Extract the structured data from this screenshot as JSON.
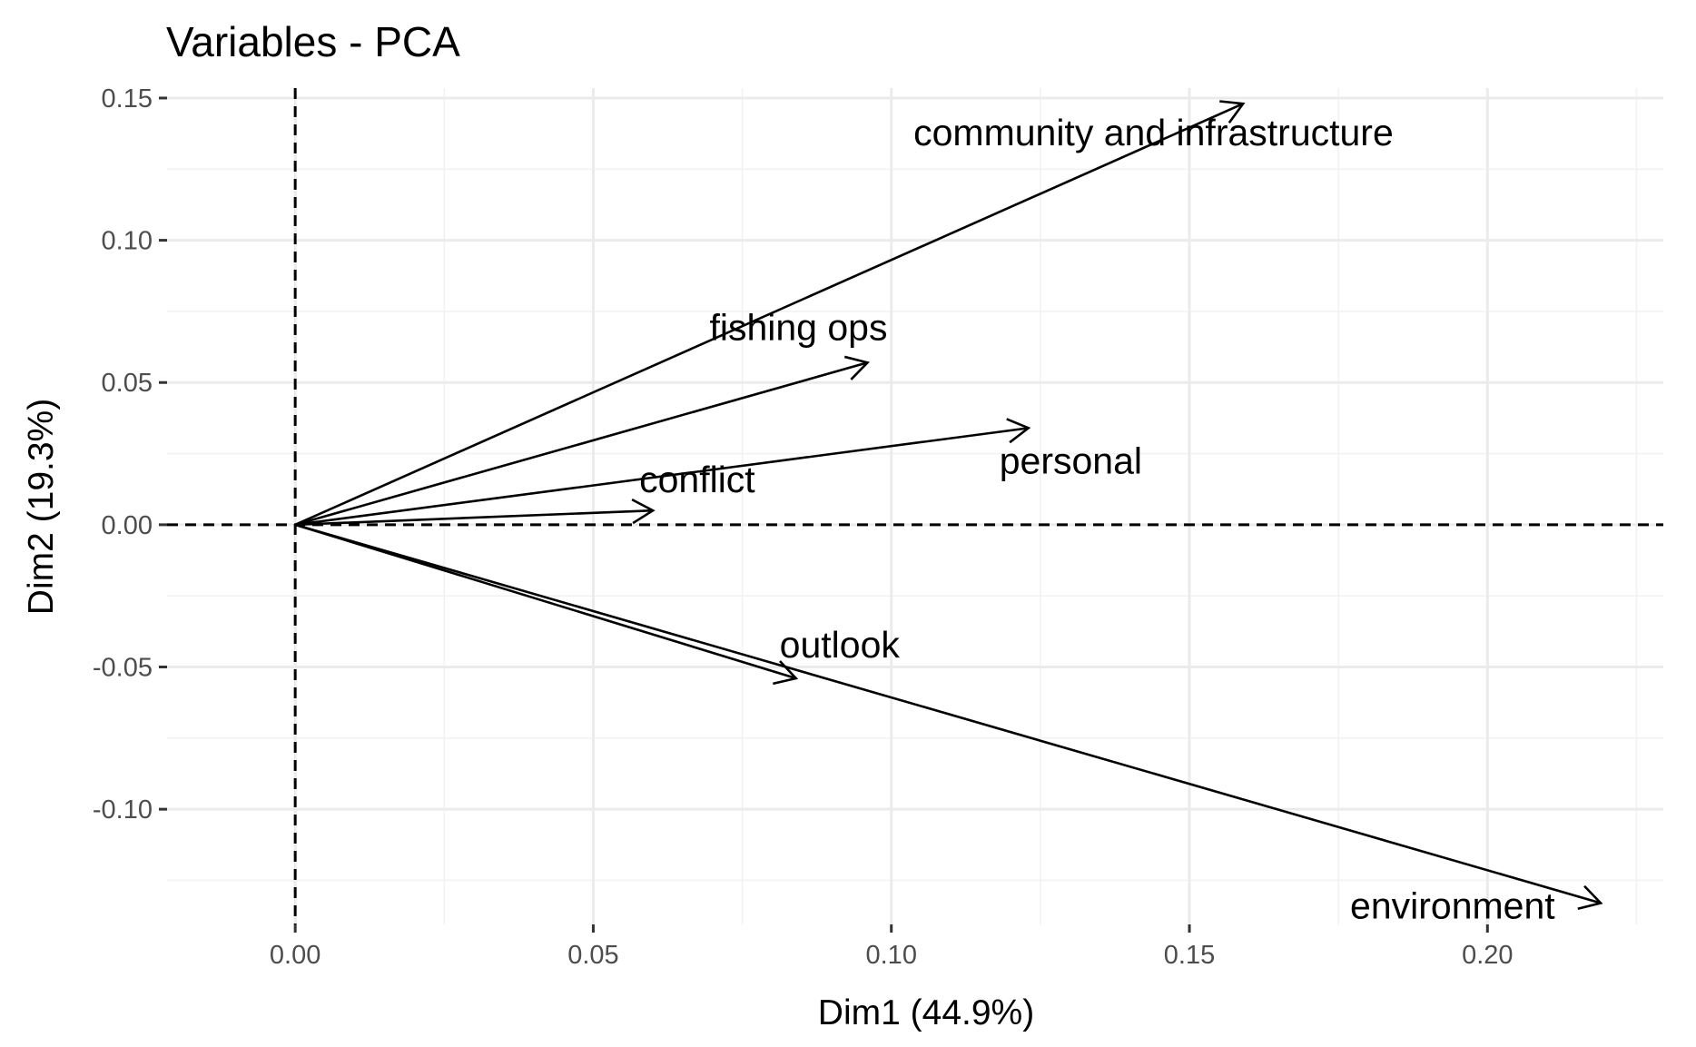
{
  "chart_data": {
    "type": "scatter",
    "subtype": "pca-variable-arrows",
    "title": "Variables - PCA",
    "xlabel": "Dim1 (44.9%)",
    "ylabel": "Dim2 (19.3%)",
    "xlim": [
      -0.0215,
      0.2295
    ],
    "ylim": [
      -0.1405,
      0.1535
    ],
    "x_ticks": [
      0.0,
      0.05,
      0.1,
      0.15,
      0.2
    ],
    "x_tick_labels": [
      "0.00",
      "0.05",
      "0.10",
      "0.15",
      "0.20"
    ],
    "y_ticks": [
      0.15,
      0.1,
      0.05,
      0.0,
      -0.05,
      -0.1
    ],
    "y_tick_labels": [
      "0.15",
      "0.10",
      "0.05",
      "0.00",
      "-0.05",
      "-0.10"
    ],
    "grid": true,
    "reference_lines": {
      "x": 0,
      "y": 0,
      "style": "dashed"
    },
    "variables": [
      {
        "name": "community and infrastructure",
        "x": 0.159,
        "y": 0.148
      },
      {
        "name": "fishing ops",
        "x": 0.096,
        "y": 0.057
      },
      {
        "name": "personal",
        "x": 0.123,
        "y": 0.034
      },
      {
        "name": "conflict",
        "x": 0.06,
        "y": 0.005
      },
      {
        "name": "outlook",
        "x": 0.084,
        "y": -0.054
      },
      {
        "name": "environment",
        "x": 0.219,
        "y": -0.133
      }
    ]
  }
}
